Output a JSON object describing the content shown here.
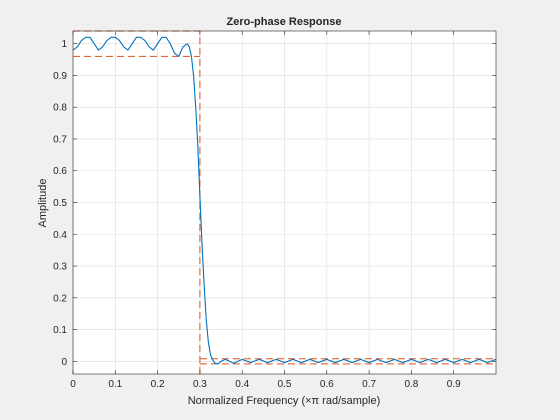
{
  "window": {
    "background": "#f0f0f0"
  },
  "chart_data": {
    "type": "line",
    "title": "Zero-phase Response",
    "xlabel": "Normalized Frequency (×π rad/sample)",
    "ylabel": "Amplitude",
    "xlim": [
      0,
      1.0
    ],
    "ylim": [
      -0.04,
      1.04
    ],
    "grid": true,
    "x_ticks": [
      0,
      0.1,
      0.2,
      0.3,
      0.4,
      0.5,
      0.6,
      0.7,
      0.8,
      0.9
    ],
    "x_tick_labels": [
      "0",
      "0.1",
      "0.2",
      "0.3",
      "0.4",
      "0.5",
      "0.6",
      "0.7",
      "0.8",
      "0.9"
    ],
    "y_ticks": [
      0,
      0.1,
      0.2,
      0.3,
      0.4,
      0.5,
      0.6,
      0.7,
      0.8,
      0.9,
      1
    ],
    "y_tick_labels": [
      "0",
      "0.1",
      "0.2",
      "0.3",
      "0.4",
      "0.5",
      "0.6",
      "0.7",
      "0.8",
      "0.9",
      "1"
    ],
    "series": [
      {
        "color": "#0072bd",
        "x": [
          0.0,
          0.01,
          0.02,
          0.03,
          0.04,
          0.05,
          0.06,
          0.07,
          0.08,
          0.09,
          0.1,
          0.11,
          0.12,
          0.13,
          0.14,
          0.15,
          0.16,
          0.17,
          0.18,
          0.19,
          0.2,
          0.21,
          0.22,
          0.23,
          0.24,
          0.25,
          0.26,
          0.27,
          0.275,
          0.28,
          0.285,
          0.29,
          0.295,
          0.3,
          0.305,
          0.31,
          0.315,
          0.32,
          0.325,
          0.33,
          0.335,
          0.34,
          0.345,
          0.35,
          0.36,
          0.37,
          0.38,
          0.39,
          0.4,
          0.42,
          0.44,
          0.46,
          0.48,
          0.5,
          0.52,
          0.54,
          0.56,
          0.58,
          0.6,
          0.62,
          0.64,
          0.66,
          0.68,
          0.7,
          0.72,
          0.74,
          0.76,
          0.78,
          0.8,
          0.82,
          0.84,
          0.86,
          0.88,
          0.9,
          0.92,
          0.94,
          0.96,
          0.98,
          1.0
        ],
        "y": [
          0.98,
          0.99,
          1.01,
          1.02,
          1.02,
          1.0,
          0.98,
          0.99,
          1.01,
          1.02,
          1.02,
          1.01,
          0.99,
          0.98,
          1.0,
          1.02,
          1.02,
          1.01,
          0.99,
          0.98,
          1.0,
          1.02,
          1.02,
          1.0,
          0.97,
          0.96,
          0.99,
          1.0,
          0.99,
          0.96,
          0.9,
          0.8,
          0.68,
          0.52,
          0.37,
          0.24,
          0.13,
          0.06,
          0.02,
          0.005,
          -0.005,
          -0.008,
          -0.006,
          0.0,
          0.006,
          0.0,
          -0.006,
          0.0,
          0.006,
          -0.004,
          0.006,
          -0.004,
          0.006,
          -0.004,
          0.006,
          -0.004,
          0.006,
          -0.004,
          0.006,
          -0.004,
          0.006,
          -0.004,
          0.006,
          -0.004,
          0.006,
          -0.004,
          0.006,
          -0.004,
          0.006,
          -0.004,
          0.006,
          -0.004,
          0.006,
          -0.004,
          0.006,
          -0.004,
          0.006,
          -0.004,
          0.006
        ]
      }
    ],
    "spec_lines": {
      "color": "#d95319",
      "horizontal": [
        {
          "y": 1.04,
          "x_from": 0,
          "x_to": 0.3
        },
        {
          "y": 0.96,
          "x_from": 0,
          "x_to": 0.3
        },
        {
          "y": 0.008,
          "x_from": 0.3,
          "x_to": 1.0
        },
        {
          "y": -0.008,
          "x_from": 0.3,
          "x_to": 1.0
        }
      ],
      "vertical": [
        {
          "x": 0.3,
          "y_from": -0.04,
          "y_to": 1.04
        }
      ]
    }
  }
}
